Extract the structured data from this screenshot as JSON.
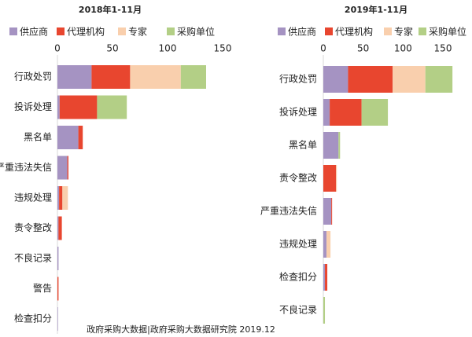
{
  "chart_data": [
    {
      "type": "bar",
      "orientation": "horizontal",
      "stacked": true,
      "title": "2018年1-11月",
      "categories": [
        "行政处罚",
        "投诉处理",
        "黑名单",
        "严重违法失信",
        "违规处理",
        "责令整改",
        "不良记录",
        "警告",
        "检查扣分"
      ],
      "series": [
        {
          "name": "供应商",
          "color": "#a593c2",
          "values": [
            31,
            2,
            19,
            9,
            1.5,
            1,
            1,
            0,
            0.5
          ]
        },
        {
          "name": "代理机构",
          "color": "#e8462f",
          "values": [
            35,
            34,
            4,
            1,
            3,
            3,
            0,
            1,
            0
          ]
        },
        {
          "name": "专家",
          "color": "#f9cfad",
          "values": [
            46,
            0,
            0,
            0,
            5,
            0,
            0,
            0,
            0
          ]
        },
        {
          "name": "采购单位",
          "color": "#b3cf86",
          "values": [
            23,
            27,
            0,
            0,
            0,
            0,
            0,
            0,
            0
          ]
        }
      ],
      "xlim": [
        0,
        150
      ],
      "xticks": [
        0,
        50,
        100,
        150
      ]
    },
    {
      "type": "bar",
      "orientation": "horizontal",
      "stacked": true,
      "title": "2019年1-11月",
      "categories": [
        "行政处罚",
        "投诉处理",
        "黑名单",
        "责令整改",
        "严重违法失信",
        "违规处理",
        "检查扣分",
        "不良记录"
      ],
      "series": [
        {
          "name": "供应商",
          "color": "#a593c2",
          "values": [
            31,
            8,
            19,
            0,
            10,
            4,
            2,
            0
          ]
        },
        {
          "name": "代理机构",
          "color": "#e8462f",
          "values": [
            56,
            40,
            0,
            16,
            1,
            0,
            3,
            0
          ]
        },
        {
          "name": "专家",
          "color": "#f9cfad",
          "values": [
            41,
            0,
            0,
            1,
            0,
            5,
            0,
            0
          ]
        },
        {
          "name": "采购单位",
          "color": "#b3cf86",
          "values": [
            34,
            33,
            2,
            0,
            0,
            0,
            0,
            2
          ]
        }
      ],
      "xlim": [
        0,
        150
      ],
      "xticks": [
        0,
        50,
        100,
        150
      ]
    }
  ],
  "source": "政府采购大数据|政府采购大数据研究院 2019.12"
}
